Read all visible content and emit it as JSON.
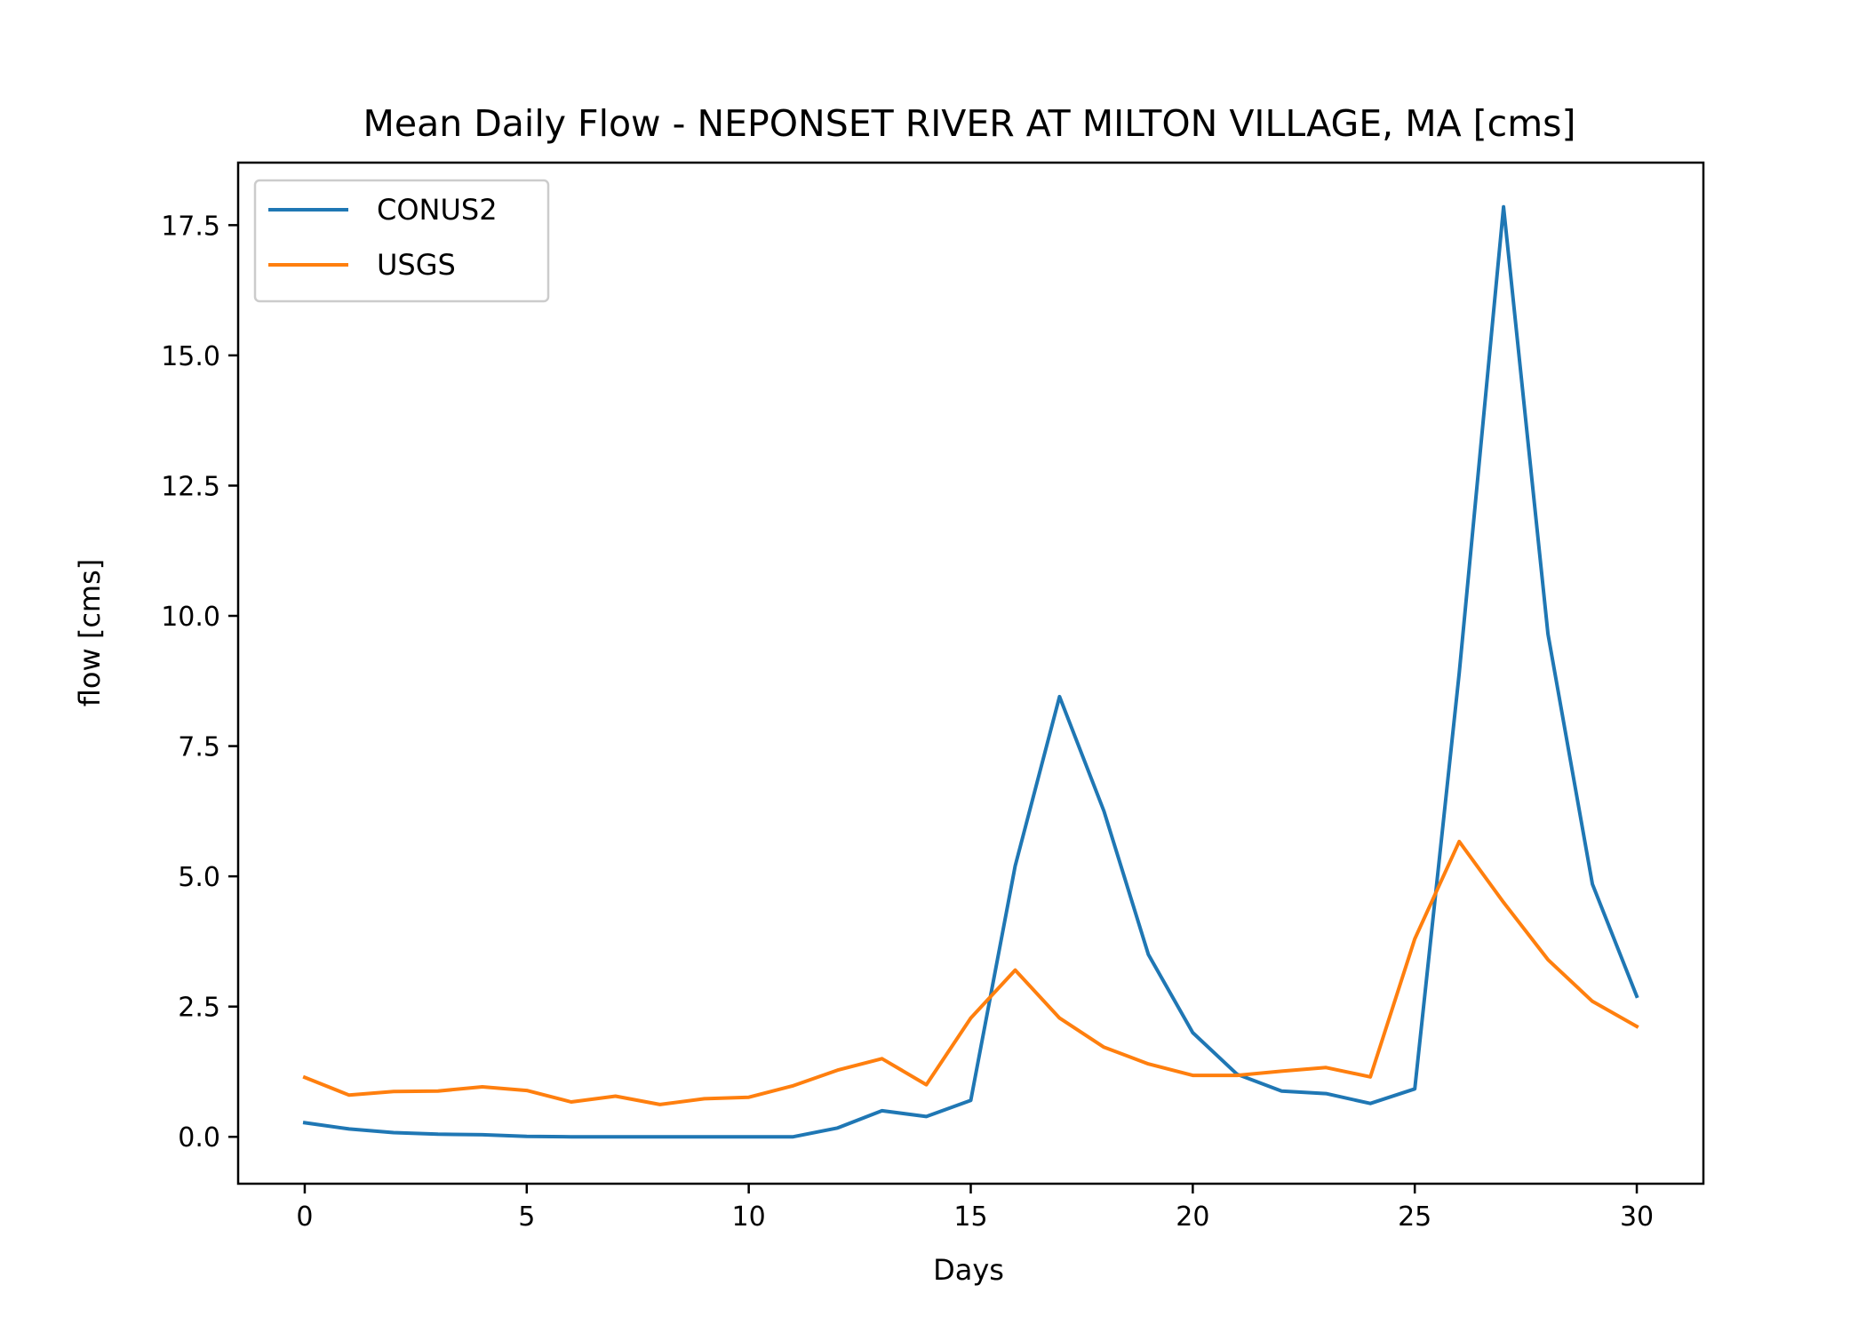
{
  "chart_data": {
    "type": "line",
    "title": "Mean Daily Flow - NEPONSET RIVER AT MILTON VILLAGE, MA [cms]",
    "xlabel": "Days",
    "ylabel": "flow [cms]",
    "xlim": [
      -1.5,
      31.5
    ],
    "ylim": [
      -0.9,
      18.7
    ],
    "xticks": [
      0,
      5,
      10,
      15,
      20,
      25,
      30
    ],
    "xtick_labels": [
      "0",
      "5",
      "10",
      "15",
      "20",
      "25",
      "30"
    ],
    "yticks": [
      0,
      2.5,
      5,
      7.5,
      10,
      12.5,
      15,
      17.5
    ],
    "ytick_labels": [
      "0.0",
      "2.5",
      "5.0",
      "7.5",
      "10.0",
      "12.5",
      "15.0",
      "17.5"
    ],
    "grid": false,
    "legend_position": "top-left",
    "x": [
      0,
      1,
      2,
      3,
      4,
      5,
      6,
      7,
      8,
      9,
      10,
      11,
      12,
      13,
      14,
      15,
      16,
      17,
      18,
      19,
      20,
      21,
      22,
      23,
      24,
      25,
      26,
      27,
      28,
      29,
      30
    ],
    "series": [
      {
        "name": "CONUS2",
        "color": "#1f77b4",
        "values": [
          0.27,
          0.15,
          0.08,
          0.05,
          0.04,
          0.01,
          0.0,
          0.0,
          0.0,
          0.0,
          0.0,
          0.0,
          0.17,
          0.5,
          0.39,
          0.7,
          5.2,
          8.45,
          6.25,
          3.5,
          2.0,
          1.2,
          0.88,
          0.83,
          0.64,
          0.92,
          8.9,
          17.85,
          9.65,
          4.85,
          2.7
        ]
      },
      {
        "name": "USGS",
        "color": "#ff7f0e",
        "values": [
          1.14,
          0.8,
          0.87,
          0.88,
          0.96,
          0.89,
          0.67,
          0.78,
          0.62,
          0.73,
          0.76,
          0.98,
          1.28,
          1.5,
          1.0,
          2.28,
          3.2,
          2.28,
          1.72,
          1.4,
          1.18,
          1.18,
          1.26,
          1.33,
          1.15,
          3.8,
          5.67,
          4.5,
          3.4,
          2.6,
          2.12
        ]
      }
    ]
  }
}
